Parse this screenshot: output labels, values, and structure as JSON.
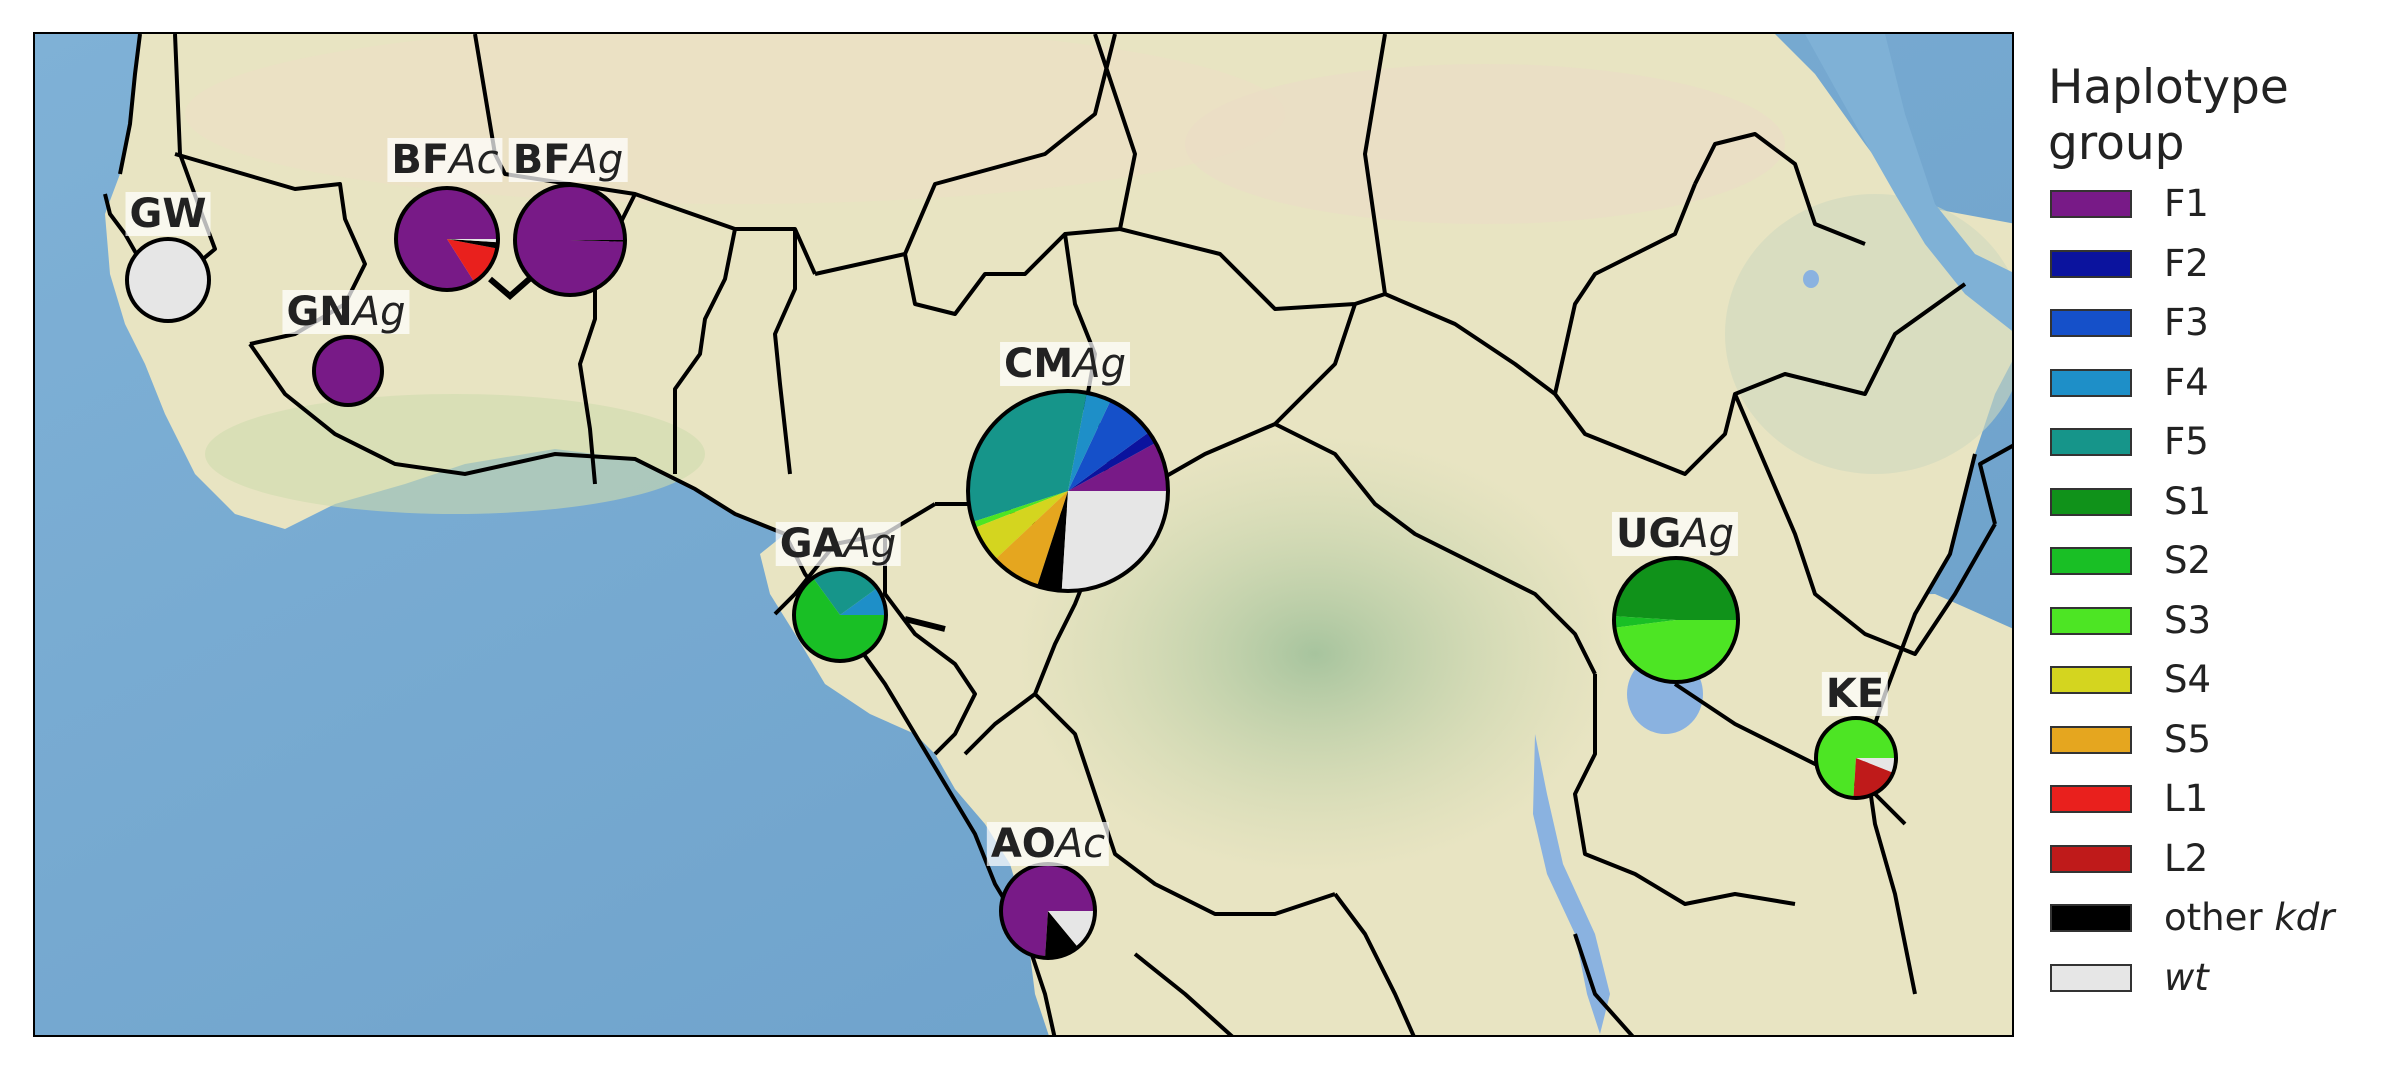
{
  "legend": {
    "title": "Haplotype group",
    "items": [
      {
        "key": "F1",
        "label": "F1",
        "color": "#781a87"
      },
      {
        "key": "F2",
        "label": "F2",
        "color": "#0b139e"
      },
      {
        "key": "F3",
        "label": "F3",
        "color": "#1550c9"
      },
      {
        "key": "F4",
        "label": "F4",
        "color": "#1e8fc8"
      },
      {
        "key": "F5",
        "label": "F5",
        "color": "#16958a"
      },
      {
        "key": "S1",
        "label": "S1",
        "color": "#10921a"
      },
      {
        "key": "S2",
        "label": "S2",
        "color": "#19bf25"
      },
      {
        "key": "S3",
        "label": "S3",
        "color": "#4de524"
      },
      {
        "key": "S4",
        "label": "S4",
        "color": "#d4d51f"
      },
      {
        "key": "S5",
        "label": "S5",
        "color": "#e5a61f"
      },
      {
        "key": "L1",
        "label": "L1",
        "color": "#e9201d"
      },
      {
        "key": "L2",
        "label": "L2",
        "color": "#bf1a1a"
      },
      {
        "key": "other",
        "label_plain": "other ",
        "label_italic": "kdr",
        "color": "#000000"
      },
      {
        "key": "wt",
        "label_plain": "",
        "label_italic": "wt",
        "color": "#e6e6e6"
      }
    ]
  },
  "populations": [
    {
      "id": "GW",
      "code": "GW",
      "species": "",
      "fractions": {
        "wt": 1.0
      }
    },
    {
      "id": "BFAc",
      "code": "BF",
      "species": "Ac",
      "fractions": {
        "wt": 0.01,
        "other": 0.02,
        "L1": 0.13,
        "F1": 0.84
      }
    },
    {
      "id": "BFAg",
      "code": "BF",
      "species": "Ag",
      "fractions": {
        "F1": 0.995,
        "other": 0.005
      }
    },
    {
      "id": "GNAg",
      "code": "GN",
      "species": "Ag",
      "fractions": {
        "F1": 1.0
      }
    },
    {
      "id": "CMAg",
      "code": "CM",
      "species": "Ag",
      "fractions": {
        "F1": 0.08,
        "F2": 0.02,
        "F3": 0.08,
        "F4": 0.04,
        "F5": 0.33,
        "S3": 0.01,
        "S4": 0.06,
        "S5": 0.08,
        "other": 0.04,
        "wt": 0.26
      }
    },
    {
      "id": "GAAg",
      "code": "GA",
      "species": "Ag",
      "fractions": {
        "F4": 0.1,
        "F5": 0.25,
        "S2": 0.65
      }
    },
    {
      "id": "UGAg",
      "code": "UG",
      "species": "Ag",
      "fractions": {
        "S1": 0.49,
        "S2": 0.03,
        "S3": 0.48
      }
    },
    {
      "id": "KE",
      "code": "KE",
      "species": "",
      "fractions": {
        "wt": 0.06,
        "L2": 0.2,
        "S3": 0.74
      }
    },
    {
      "id": "AOAc",
      "code": "AO",
      "species": "Ac",
      "fractions": {
        "wt": 0.14,
        "other": 0.12,
        "F1": 0.74
      }
    }
  ]
}
